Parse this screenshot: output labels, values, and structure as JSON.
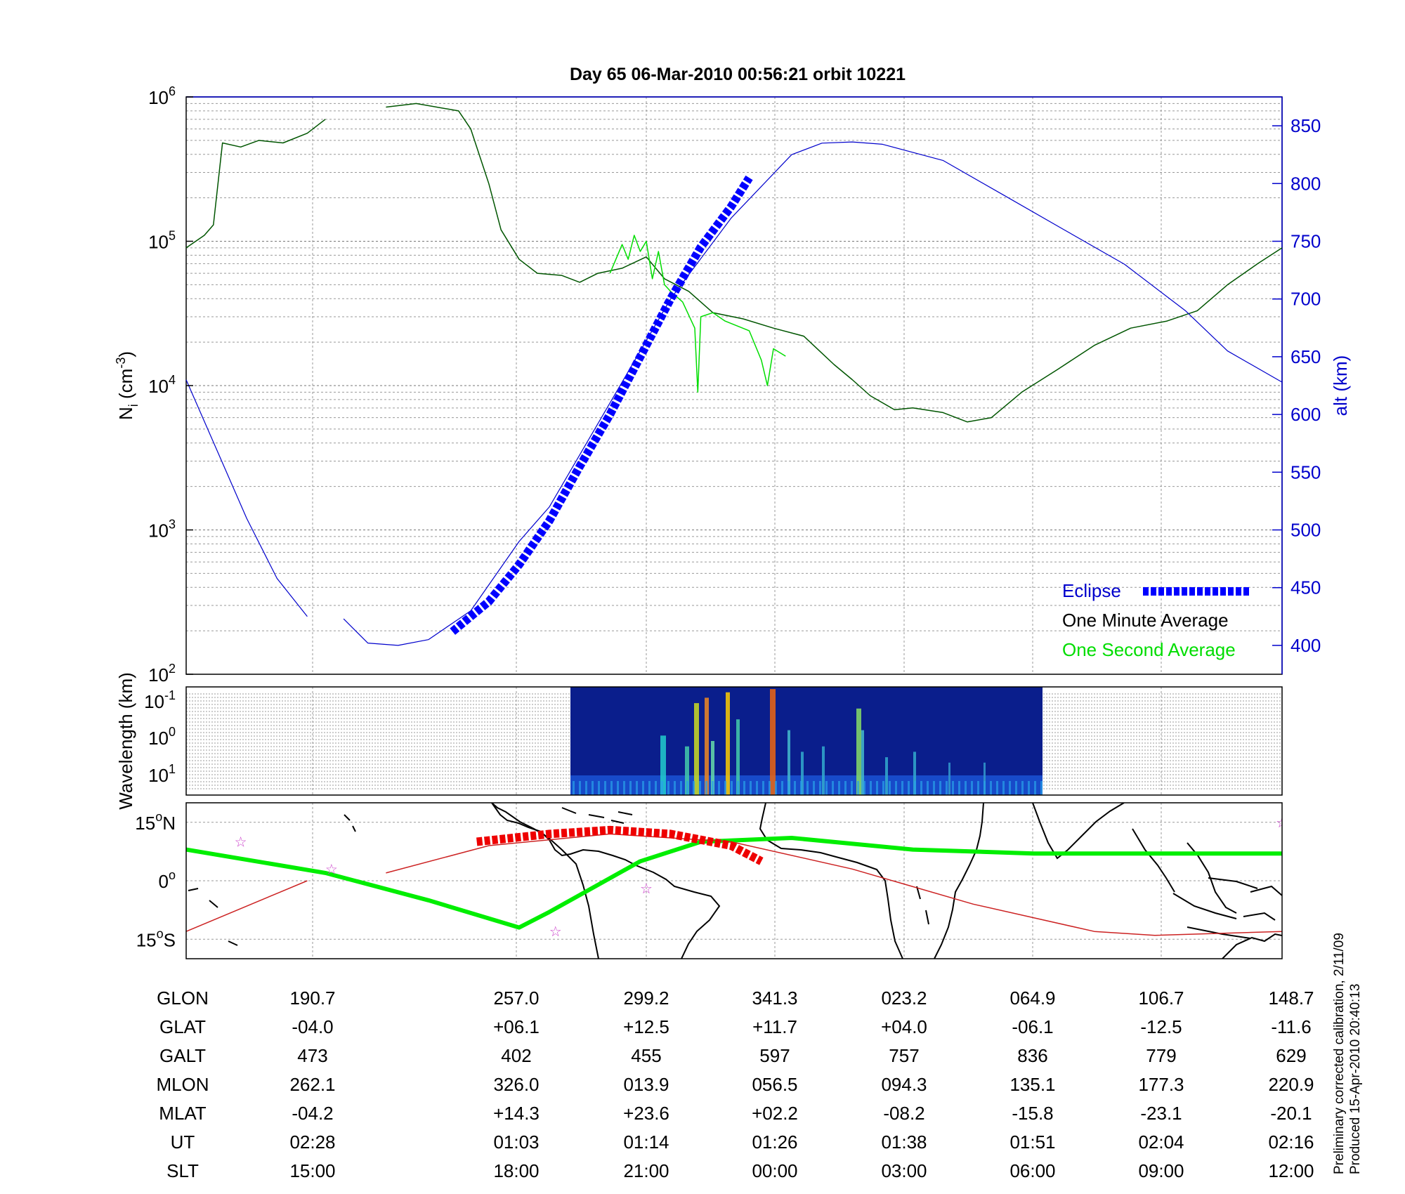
{
  "title": "Day 65  06-Mar-2010 00:56:21   orbit 10221",
  "left_axis": {
    "label_main": "N",
    "label_sub": "i",
    "label_unit": "(cm",
    "label_unit_sup": "-3",
    "label_close": ")",
    "ticks": [
      {
        "base": "10",
        "exp": "2",
        "value": 100
      },
      {
        "base": "10",
        "exp": "3",
        "value": 1000
      },
      {
        "base": "10",
        "exp": "4",
        "value": 10000
      },
      {
        "base": "10",
        "exp": "5",
        "value": 100000
      },
      {
        "base": "10",
        "exp": "6",
        "value": 1000000
      }
    ]
  },
  "right_axis": {
    "label": "alt (km)",
    "ticks": [
      "400",
      "450",
      "500",
      "550",
      "600",
      "650",
      "700",
      "750",
      "800",
      "850"
    ],
    "range": [
      375,
      875
    ]
  },
  "spectrogram_axis": {
    "label": "Wavelength (km)",
    "ticks": [
      {
        "base": "10",
        "exp": "-1"
      },
      {
        "base": "10",
        "exp": "0"
      },
      {
        "base": "10",
        "exp": "1"
      }
    ]
  },
  "map_axis": {
    "ticks": [
      {
        "num": "15",
        "deg": "o",
        "hemi": "N"
      },
      {
        "num": "0",
        "deg": "o",
        "hemi": ""
      },
      {
        "num": "15",
        "deg": "o",
        "hemi": "S"
      }
    ]
  },
  "legend": {
    "eclipse": "Eclipse",
    "minute": "One Minute Average",
    "second": "One Second Average"
  },
  "colors": {
    "altitude": "#0000cc",
    "eclipse": "#0000ff",
    "minute_avg": "#005500",
    "second_avg": "#00dd00",
    "track_red": "#cc2222",
    "ground_track": "#00ee00",
    "map_eclipse": "#ee0000",
    "star": "#cc44cc"
  },
  "table": {
    "rows": [
      {
        "label": "GLON",
        "values": [
          "190.7",
          "257.0",
          "299.2",
          "341.3",
          "023.2",
          "064.9",
          "106.7",
          "148.7"
        ]
      },
      {
        "label": "GLAT",
        "values": [
          "-04.0",
          "+06.1",
          "+12.5",
          "+11.7",
          "+04.0",
          "-06.1",
          "-12.5",
          "-11.6"
        ]
      },
      {
        "label": "GALT",
        "values": [
          "473",
          "402",
          "455",
          "597",
          "757",
          "836",
          "779",
          "629"
        ]
      },
      {
        "label": "MLON",
        "values": [
          "262.1",
          "326.0",
          "013.9",
          "056.5",
          "094.3",
          "135.1",
          "177.3",
          "220.9"
        ]
      },
      {
        "label": "MLAT",
        "values": [
          "-04.2",
          "+14.3",
          "+23.6",
          "+02.2",
          "-08.2",
          "-15.8",
          "-23.1",
          "-20.1"
        ]
      },
      {
        "label": "UT",
        "values": [
          "02:28",
          "01:03",
          "01:14",
          "01:26",
          "01:38",
          "01:51",
          "02:04",
          "02:16"
        ]
      },
      {
        "label": "SLT",
        "values": [
          "15:00",
          "18:00",
          "21:00",
          "00:00",
          "03:00",
          "06:00",
          "09:00",
          "12:00"
        ]
      }
    ]
  },
  "footer": {
    "line1": "Preliminary corrected calibration, 2/11/09",
    "line2": "Produced 15-Apr-2010 20:40:13"
  },
  "chart_data": [
    {
      "type": "line",
      "x_axis": "SLT",
      "x_ticks": [
        "15:00",
        "18:00",
        "21:00",
        "00:00",
        "03:00",
        "06:00",
        "09:00",
        "12:00"
      ],
      "ylim_left": [
        100,
        1000000
      ],
      "left_scale": "log",
      "ylim_right": [
        375,
        875
      ],
      "grid": true,
      "legend_position": "bottom-right",
      "series": [
        {
          "name": "One Minute Average",
          "axis": "left",
          "segments": [
            [
              [
                0.0,
                90000
              ],
              [
                0.03,
                110000
              ],
              [
                0.045,
                130000
              ],
              [
                0.06,
                480000
              ],
              [
                0.09,
                450000
              ],
              [
                0.12,
                500000
              ],
              [
                0.16,
                480000
              ],
              [
                0.2,
                560000
              ],
              [
                0.23,
                700000
              ]
            ],
            [
              [
                0.33,
                850000
              ],
              [
                0.38,
                900000
              ],
              [
                0.45,
                800000
              ],
              [
                0.47,
                600000
              ],
              [
                0.5,
                250000
              ],
              [
                0.52,
                120000
              ],
              [
                0.55,
                75000
              ],
              [
                0.58,
                60000
              ],
              [
                0.62,
                58000
              ],
              [
                0.65,
                52000
              ],
              [
                0.68,
                60000
              ],
              [
                0.72,
                65000
              ],
              [
                0.76,
                78000
              ],
              [
                0.79,
                55000
              ],
              [
                0.83,
                45000
              ],
              [
                0.87,
                32000
              ],
              [
                0.92,
                29000
              ],
              [
                0.97,
                25000
              ],
              [
                1.02,
                22000
              ],
              [
                1.07,
                14000
              ],
              [
                1.1,
                11000
              ],
              [
                1.13,
                8500
              ],
              [
                1.17,
                6800
              ],
              [
                1.2,
                7000
              ],
              [
                1.25,
                6500
              ],
              [
                1.29,
                5600
              ],
              [
                1.33,
                6000
              ],
              [
                1.38,
                9000
              ],
              [
                1.44,
                13000
              ],
              [
                1.5,
                19000
              ],
              [
                1.56,
                25000
              ],
              [
                1.62,
                28000
              ],
              [
                1.67,
                33000
              ],
              [
                1.72,
                50000
              ],
              [
                1.77,
                70000
              ],
              [
                1.81,
                90000
              ]
            ]
          ]
        },
        {
          "name": "One Second Average",
          "axis": "left",
          "segments": [
            [
              [
                0.7,
                60000
              ],
              [
                0.72,
                95000
              ],
              [
                0.73,
                75000
              ],
              [
                0.74,
                110000
              ],
              [
                0.75,
                85000
              ],
              [
                0.76,
                100000
              ],
              [
                0.77,
                55000
              ],
              [
                0.78,
                85000
              ],
              [
                0.79,
                50000
              ],
              [
                0.8,
                45000
              ],
              [
                0.82,
                38000
              ],
              [
                0.84,
                25000
              ],
              [
                0.845,
                9000
              ],
              [
                0.85,
                30000
              ],
              [
                0.87,
                32000
              ],
              [
                0.89,
                28000
              ],
              [
                0.93,
                24000
              ],
              [
                0.95,
                15000
              ],
              [
                0.96,
                10000
              ],
              [
                0.97,
                18000
              ],
              [
                0.99,
                16000
              ]
            ]
          ]
        },
        {
          "name": "alt",
          "axis": "right",
          "segments": [
            [
              [
                0.0,
                630
              ],
              [
                0.05,
                570
              ],
              [
                0.1,
                510
              ],
              [
                0.15,
                458
              ],
              [
                0.2,
                425
              ]
            ],
            [
              [
                0.26,
                423
              ],
              [
                0.3,
                402
              ],
              [
                0.35,
                400
              ],
              [
                0.4,
                405
              ],
              [
                0.47,
                430
              ],
              [
                0.55,
                490
              ],
              [
                0.6,
                520
              ],
              [
                0.7,
                610
              ],
              [
                0.8,
                700
              ],
              [
                0.9,
                770
              ],
              [
                1.0,
                825
              ],
              [
                1.05,
                835
              ],
              [
                1.1,
                836
              ],
              [
                1.15,
                834
              ],
              [
                1.25,
                820
              ],
              [
                1.35,
                790
              ],
              [
                1.45,
                760
              ],
              [
                1.55,
                730
              ],
              [
                1.65,
                690
              ],
              [
                1.72,
                655
              ],
              [
                1.81,
                628
              ]
            ]
          ]
        },
        {
          "name": "Eclipse",
          "axis": "right",
          "segments": [
            [
              [
                0.44,
                412
              ],
              [
                0.5,
                438
              ],
              [
                0.55,
                470
              ],
              [
                0.6,
                508
              ],
              [
                0.65,
                555
              ],
              [
                0.7,
                600
              ],
              [
                0.75,
                650
              ],
              [
                0.8,
                700
              ],
              [
                0.85,
                745
              ],
              [
                0.9,
                780
              ],
              [
                0.93,
                805
              ]
            ]
          ]
        }
      ]
    },
    {
      "type": "heatmap",
      "ylabel": "Wavelength (km)",
      "x_extent": [
        "between 18:00 and 21:00",
        "between 06:00 and 09:00"
      ]
    },
    {
      "type": "line",
      "x_axis": "SLT",
      "y_ticks": [
        "15°N",
        "0°",
        "15°S"
      ],
      "ylim": [
        -20,
        20
      ],
      "series": [
        {
          "name": "ground_track",
          "segments": [
            [
              [
                0.0,
                8
              ],
              [
                0.23,
                2
              ],
              [
                0.4,
                -5
              ],
              [
                0.55,
                -12
              ],
              [
                0.6,
                -8
              ],
              [
                0.75,
                5
              ],
              [
                0.85,
                10
              ],
              [
                1.0,
                11
              ],
              [
                1.2,
                8
              ],
              [
                1.4,
                7
              ],
              [
                1.6,
                7
              ],
              [
                1.81,
                7
              ]
            ]
          ]
        },
        {
          "name": "magnetic_track",
          "segments": [
            [
              [
                0.0,
                -13
              ],
              [
                0.2,
                0
              ]
            ],
            [
              [
                0.33,
                2
              ],
              [
                0.5,
                9
              ],
              [
                0.7,
                12
              ],
              [
                0.9,
                10
              ],
              [
                1.1,
                3
              ],
              [
                1.3,
                -6
              ],
              [
                1.5,
                -13
              ],
              [
                1.6,
                -14
              ],
              [
                1.81,
                -13
              ]
            ]
          ]
        },
        {
          "name": "eclipse_track",
          "segments": [
            [
              [
                0.48,
                10
              ],
              [
                0.6,
                12
              ],
              [
                0.7,
                13
              ],
              [
                0.8,
                12
              ],
              [
                0.9,
                9
              ],
              [
                0.95,
                5
              ]
            ]
          ]
        }
      ],
      "markers": [
        [
          0.09,
          10
        ],
        [
          0.24,
          3
        ],
        [
          0.61,
          -13
        ],
        [
          0.76,
          -2
        ],
        [
          1.81,
          15
        ]
      ]
    }
  ]
}
